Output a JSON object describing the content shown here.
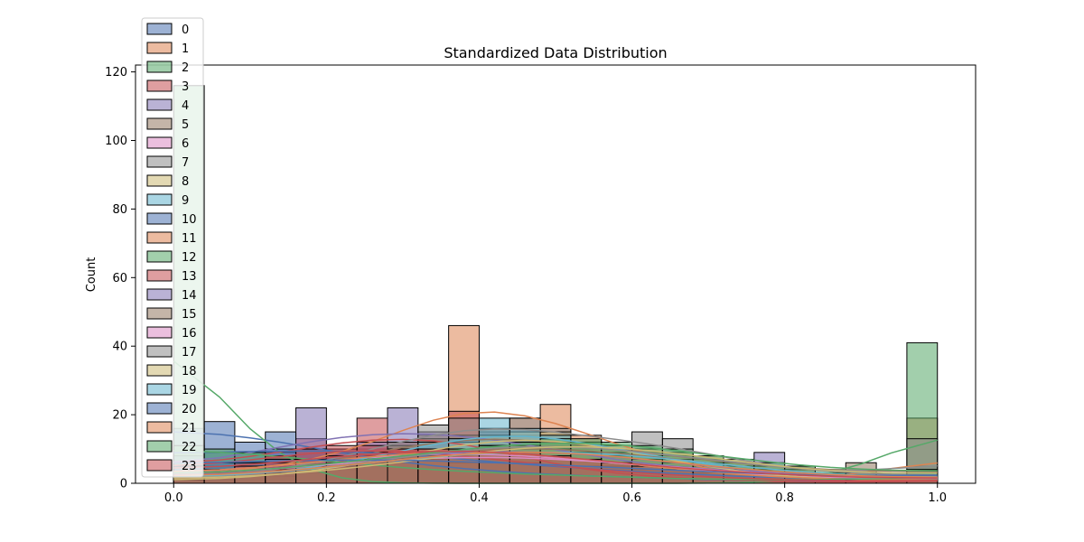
{
  "chart_data": {
    "type": "histogram",
    "title": "Standardized Data Distribution",
    "xlabel": "",
    "ylabel": "Count",
    "xlim": [
      -0.05,
      1.05
    ],
    "ylim": [
      0,
      122
    ],
    "xticks": [
      "0.0",
      "0.2",
      "0.4",
      "0.6",
      "0.8",
      "1.0"
    ],
    "yticks": [
      "0",
      "20",
      "40",
      "60",
      "80",
      "100",
      "120"
    ],
    "grid": false,
    "legend_position": "top-left",
    "bin_edges": [
      0.0,
      0.04,
      0.08,
      0.12,
      0.16,
      0.2,
      0.24,
      0.28,
      0.32,
      0.36,
      0.4,
      0.44,
      0.48,
      0.52,
      0.56,
      0.6,
      0.64,
      0.68,
      0.72,
      0.76,
      0.8,
      0.84,
      0.88,
      0.92,
      0.96,
      1.0
    ],
    "series": [
      {
        "name": "0",
        "color": "#4c72b0",
        "counts": [
          16,
          18,
          12,
          15,
          10,
          8,
          6,
          6,
          5,
          4,
          3,
          3,
          2,
          2,
          2,
          2,
          1,
          1,
          1,
          1,
          0,
          0,
          0,
          0,
          5
        ]
      },
      {
        "name": "1",
        "color": "#dd8452",
        "counts": [
          2,
          2,
          3,
          4,
          6,
          8,
          10,
          12,
          14,
          46,
          16,
          19,
          23,
          14,
          10,
          7,
          5,
          3,
          2,
          1,
          1,
          0,
          0,
          0,
          19
        ]
      },
      {
        "name": "2",
        "color": "#55a868",
        "counts": [
          116,
          0,
          0,
          0,
          0,
          0,
          0,
          0,
          0,
          0,
          0,
          0,
          0,
          0,
          0,
          0,
          0,
          0,
          0,
          0,
          0,
          0,
          0,
          0,
          41
        ]
      },
      {
        "name": "3",
        "color": "#c44e52",
        "counts": [
          4,
          5,
          6,
          8,
          13,
          10,
          19,
          12,
          10,
          21,
          8,
          6,
          4,
          3,
          2,
          2,
          1,
          1,
          1,
          1,
          0,
          0,
          0,
          0,
          2
        ]
      },
      {
        "name": "4",
        "color": "#8172b3",
        "counts": [
          3,
          5,
          6,
          9,
          22,
          9,
          12,
          22,
          15,
          11,
          15,
          12,
          10,
          8,
          6,
          5,
          4,
          3,
          2,
          9,
          1,
          0,
          0,
          0,
          3
        ]
      },
      {
        "name": "5",
        "color": "#937860",
        "counts": [
          1,
          2,
          2,
          3,
          5,
          7,
          9,
          11,
          13,
          14,
          15,
          14,
          12,
          11,
          10,
          9,
          8,
          7,
          5,
          4,
          5,
          2,
          6,
          1,
          4
        ]
      },
      {
        "name": "6",
        "color": "#da8bc3",
        "counts": [
          2,
          3,
          4,
          5,
          6,
          7,
          8,
          9,
          9,
          9,
          9,
          8,
          8,
          7,
          6,
          5,
          4,
          3,
          3,
          2,
          2,
          1,
          1,
          1,
          2
        ]
      },
      {
        "name": "7",
        "color": "#8c8c8c",
        "counts": [
          0,
          1,
          2,
          3,
          5,
          7,
          9,
          12,
          17,
          19,
          16,
          19,
          16,
          12,
          10,
          15,
          13,
          7,
          6,
          5,
          3,
          2,
          1,
          1,
          13
        ]
      },
      {
        "name": "8",
        "color": "#ccb974",
        "counts": [
          0,
          1,
          1,
          2,
          3,
          4,
          6,
          8,
          10,
          12,
          14,
          15,
          15,
          12,
          10,
          8,
          6,
          4,
          3,
          2,
          1,
          1,
          0,
          0,
          3
        ]
      },
      {
        "name": "9",
        "color": "#64b5cd",
        "counts": [
          1,
          1,
          2,
          3,
          4,
          5,
          7,
          9,
          12,
          13,
          19,
          16,
          14,
          12,
          10,
          8,
          6,
          5,
          4,
          3,
          2,
          2,
          1,
          1,
          2
        ]
      },
      {
        "name": "10",
        "color": "#4c72b0",
        "counts": [
          8,
          9,
          9,
          10,
          10,
          10,
          9,
          9,
          8,
          7,
          6,
          5,
          5,
          4,
          4,
          3,
          3,
          2,
          2,
          2,
          1,
          1,
          1,
          1,
          2
        ]
      },
      {
        "name": "11",
        "color": "#dd8452",
        "counts": [
          2,
          3,
          4,
          5,
          6,
          7,
          8,
          9,
          10,
          10,
          10,
          9,
          8,
          7,
          6,
          5,
          4,
          3,
          2,
          2,
          1,
          1,
          1,
          1,
          1
        ]
      },
      {
        "name": "12",
        "color": "#55a868",
        "counts": [
          11,
          10,
          9,
          8,
          7,
          6,
          5,
          4,
          4,
          3,
          3,
          3,
          2,
          2,
          2,
          2,
          1,
          1,
          1,
          1,
          1,
          1,
          1,
          1,
          3
        ]
      },
      {
        "name": "13",
        "color": "#c44e52",
        "counts": [
          3,
          4,
          6,
          8,
          10,
          11,
          11,
          10,
          9,
          8,
          7,
          6,
          5,
          4,
          3,
          3,
          2,
          2,
          1,
          1,
          1,
          1,
          0,
          0,
          2
        ]
      },
      {
        "name": "14",
        "color": "#8172b3",
        "counts": [
          1,
          2,
          3,
          4,
          5,
          6,
          7,
          8,
          9,
          10,
          10,
          10,
          9,
          9,
          8,
          7,
          6,
          5,
          4,
          3,
          2,
          2,
          1,
          1,
          2
        ]
      },
      {
        "name": "15",
        "color": "#937860",
        "counts": [
          2,
          2,
          3,
          4,
          5,
          6,
          7,
          8,
          9,
          10,
          11,
          11,
          11,
          10,
          9,
          8,
          7,
          6,
          5,
          4,
          3,
          2,
          2,
          1,
          2
        ]
      },
      {
        "name": "16",
        "color": "#da8bc3",
        "counts": [
          2,
          3,
          3,
          4,
          5,
          6,
          7,
          7,
          8,
          8,
          8,
          8,
          7,
          7,
          6,
          5,
          5,
          4,
          3,
          3,
          2,
          2,
          1,
          1,
          2
        ]
      },
      {
        "name": "17",
        "color": "#8c8c8c",
        "counts": [
          1,
          1,
          2,
          3,
          4,
          5,
          6,
          8,
          9,
          10,
          11,
          12,
          12,
          11,
          10,
          9,
          8,
          7,
          6,
          5,
          4,
          3,
          2,
          1,
          3
        ]
      },
      {
        "name": "18",
        "color": "#ccb974",
        "counts": [
          1,
          1,
          2,
          2,
          3,
          4,
          5,
          6,
          7,
          9,
          10,
          11,
          12,
          12,
          11,
          10,
          9,
          8,
          6,
          5,
          4,
          3,
          2,
          2,
          4
        ]
      },
      {
        "name": "19",
        "color": "#64b5cd",
        "counts": [
          1,
          2,
          2,
          3,
          4,
          5,
          6,
          7,
          8,
          9,
          9,
          10,
          10,
          9,
          9,
          8,
          7,
          6,
          5,
          4,
          3,
          2,
          2,
          1,
          2
        ]
      },
      {
        "name": "20",
        "color": "#4c72b0",
        "counts": [
          5,
          6,
          6,
          7,
          7,
          7,
          7,
          7,
          7,
          6,
          6,
          6,
          5,
          5,
          5,
          4,
          4,
          3,
          3,
          3,
          2,
          2,
          2,
          2,
          3
        ]
      },
      {
        "name": "21",
        "color": "#dd8452",
        "counts": [
          1,
          2,
          3,
          3,
          4,
          5,
          6,
          7,
          8,
          9,
          10,
          10,
          10,
          9,
          8,
          7,
          6,
          5,
          4,
          3,
          3,
          2,
          2,
          1,
          2
        ]
      },
      {
        "name": "22",
        "color": "#55a868",
        "counts": [
          2,
          3,
          3,
          4,
          5,
          6,
          7,
          8,
          9,
          10,
          11,
          12,
          13,
          13,
          12,
          11,
          10,
          8,
          7,
          6,
          5,
          4,
          3,
          3,
          4
        ]
      },
      {
        "name": "23",
        "color": "#c44e52",
        "counts": [
          3,
          4,
          5,
          6,
          7,
          8,
          9,
          10,
          10,
          10,
          10,
          9,
          8,
          7,
          6,
          5,
          4,
          4,
          3,
          3,
          2,
          2,
          1,
          1,
          2
        ]
      }
    ]
  }
}
